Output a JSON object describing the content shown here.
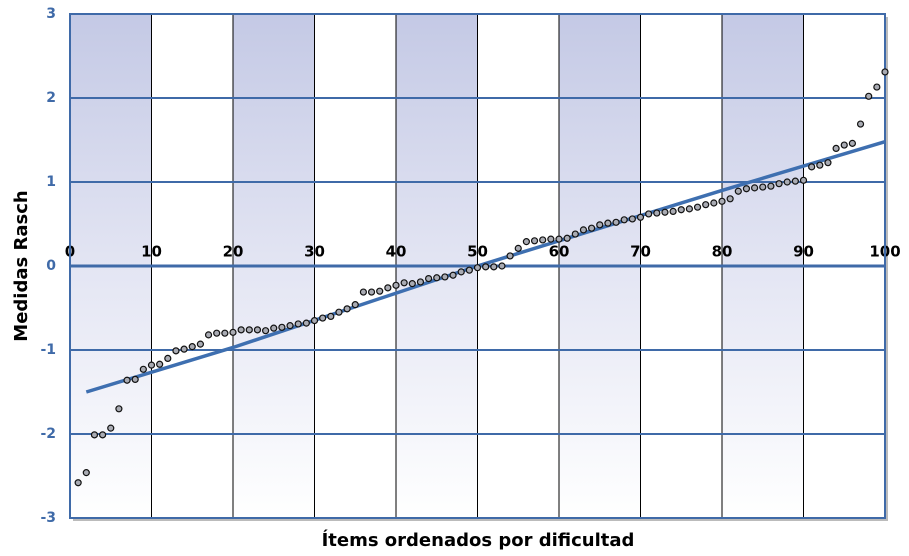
{
  "chart_data": {
    "type": "scatter",
    "xlabel": "Ítems ordenados por dificultad",
    "ylabel": "Medidas Rasch",
    "xlim": [
      0,
      100
    ],
    "ylim": [
      -3,
      3
    ],
    "xticks": [
      0,
      10,
      20,
      30,
      40,
      50,
      60,
      70,
      80,
      90,
      100
    ],
    "yticks": [
      -3,
      -2,
      -1,
      0,
      1,
      2,
      3
    ],
    "grid": true,
    "series": [
      {
        "color": "#a9abb3",
        "kind": "points",
        "x": [
          1,
          2,
          3,
          4,
          5,
          6,
          7,
          8,
          9,
          10,
          11,
          12,
          13,
          14,
          15,
          16,
          17,
          18,
          19,
          20,
          21,
          22,
          23,
          24,
          25,
          26,
          27,
          28,
          29,
          30,
          31,
          32,
          33,
          34,
          35,
          36,
          37,
          38,
          39,
          40,
          41,
          42,
          43,
          44,
          45,
          46,
          47,
          48,
          49,
          50,
          51,
          52,
          53,
          54,
          55,
          56,
          57,
          58,
          59,
          60,
          61,
          62,
          63,
          64,
          65,
          66,
          67,
          68,
          69,
          70,
          71,
          72,
          73,
          74,
          75,
          76,
          77,
          78,
          79,
          80,
          81,
          82,
          83,
          84,
          85,
          86,
          87,
          88,
          89,
          90,
          91,
          92,
          93,
          94,
          95,
          96,
          97,
          98,
          99,
          100
        ],
        "values": [
          -2.58,
          -2.46,
          -2.01,
          -2.01,
          -1.93,
          -1.7,
          -1.36,
          -1.35,
          -1.23,
          -1.18,
          -1.17,
          -1.1,
          -1.01,
          -0.99,
          -0.96,
          -0.93,
          -0.82,
          -0.8,
          -0.8,
          -0.79,
          -0.76,
          -0.76,
          -0.76,
          -0.77,
          -0.74,
          -0.73,
          -0.71,
          -0.69,
          -0.68,
          -0.65,
          -0.62,
          -0.6,
          -0.55,
          -0.51,
          -0.46,
          -0.31,
          -0.31,
          -0.3,
          -0.26,
          -0.23,
          -0.2,
          -0.21,
          -0.19,
          -0.15,
          -0.14,
          -0.13,
          -0.11,
          -0.07,
          -0.05,
          -0.02,
          -0.01,
          -0.01,
          0,
          0.12,
          0.21,
          0.29,
          0.3,
          0.31,
          0.32,
          0.32,
          0.33,
          0.38,
          0.43,
          0.45,
          0.49,
          0.51,
          0.52,
          0.55,
          0.56,
          0.58,
          0.62,
          0.63,
          0.64,
          0.65,
          0.67,
          0.68,
          0.7,
          0.73,
          0.75,
          0.77,
          0.8,
          0.89,
          0.92,
          0.93,
          0.94,
          0.95,
          0.98,
          1,
          1.01,
          1.02,
          1.18,
          1.2,
          1.23,
          1.4,
          1.44,
          1.46,
          1.69,
          2.02,
          2.13,
          2.31
        ]
      },
      {
        "color": "#3e6fb0",
        "kind": "line",
        "x": [
          2,
          20,
          50,
          80,
          100
        ],
        "values": [
          -1.5,
          -0.97,
          0,
          0.9,
          1.48
        ]
      }
    ]
  }
}
